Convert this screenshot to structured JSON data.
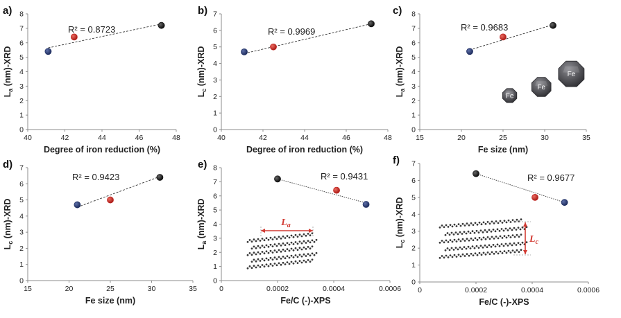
{
  "colors": {
    "blue": "#1f2f63",
    "red": "#c0201e",
    "black": "#111111",
    "accent": "#d23a32",
    "fe_body": "#4a4a4e"
  },
  "chart_data": [
    {
      "type": "scatter",
      "panel_label": "a)",
      "r2_label": "R² = 0.8723",
      "xlabel": "Degree of iron reduction  (%)",
      "ylabel_main": "L",
      "ylabel_sub": "a",
      "ylabel_rest": " (nm)-XRD",
      "xlim": [
        40,
        48
      ],
      "ylim": [
        0,
        8
      ],
      "xticks": [
        40,
        42,
        44,
        46,
        48
      ],
      "yticks": [
        0,
        1,
        2,
        3,
        4,
        5,
        6,
        7,
        8
      ],
      "xtick_labels": [
        "40",
        "42",
        "44",
        "46",
        "48"
      ],
      "ytick_labels": [
        "0",
        "1",
        "2",
        "3",
        "4",
        "5",
        "6",
        "7",
        "8"
      ],
      "x": [
        41.1,
        42.5,
        47.2
      ],
      "y": [
        5.4,
        6.4,
        7.2
      ],
      "point_colors": [
        "blue",
        "red",
        "black"
      ],
      "trendline": {
        "x": [
          41.1,
          47.2
        ],
        "y": [
          5.65,
          7.3
        ]
      }
    },
    {
      "type": "scatter",
      "panel_label": "b)",
      "r2_label": "R² = 0.9969",
      "xlabel": "Degree of iron reduction (%)",
      "ylabel_main": "L",
      "ylabel_sub": "c",
      "ylabel_rest": " (nm)-XRD",
      "xlim": [
        40,
        48
      ],
      "ylim": [
        0,
        7
      ],
      "xticks": [
        40,
        42,
        44,
        46,
        48
      ],
      "yticks": [
        0,
        1,
        2,
        3,
        4,
        5,
        6,
        7
      ],
      "xtick_labels": [
        "40",
        "42",
        "44",
        "46",
        "48"
      ],
      "ytick_labels": [
        "0",
        "1",
        "2",
        "3",
        "4",
        "5",
        "6",
        "7"
      ],
      "x": [
        41.1,
        42.5,
        47.2
      ],
      "y": [
        4.7,
        5.0,
        6.4
      ],
      "point_colors": [
        "blue",
        "red",
        "black"
      ],
      "trendline": {
        "x": [
          41.1,
          47.2
        ],
        "y": [
          4.6,
          6.4
        ]
      }
    },
    {
      "type": "scatter",
      "panel_label": "c)",
      "r2_label": "R² = 0.9683",
      "xlabel": "Fe  size (nm)",
      "ylabel_main": "L",
      "ylabel_sub": "a",
      "ylabel_rest": " (nm)-XRD",
      "xlim": [
        15,
        35
      ],
      "ylim": [
        0,
        8
      ],
      "xticks": [
        15,
        20,
        25,
        30,
        35
      ],
      "yticks": [
        0,
        1,
        2,
        3,
        4,
        5,
        6,
        7,
        8
      ],
      "xtick_labels": [
        "15",
        "20",
        "25",
        "30",
        "35"
      ],
      "ytick_labels": [
        "0",
        "1",
        "2",
        "3",
        "4",
        "5",
        "6",
        "7",
        "8"
      ],
      "x": [
        21,
        25,
        31
      ],
      "y": [
        5.4,
        6.4,
        7.2
      ],
      "point_colors": [
        "blue",
        "red",
        "black"
      ],
      "trendline": {
        "x": [
          21,
          31
        ],
        "y": [
          5.5,
          7.25
        ]
      },
      "annotations": {
        "fe_labels": [
          "Fe",
          "Fe",
          "Fe"
        ]
      }
    },
    {
      "type": "scatter",
      "panel_label": "d)",
      "r2_label": "R² = 0.9423",
      "xlabel": "Fe  size (nm)",
      "ylabel_main": "L",
      "ylabel_sub": "c",
      "ylabel_rest": " (nm)-XRD",
      "xlim": [
        15,
        35
      ],
      "ylim": [
        0,
        7
      ],
      "xticks": [
        15,
        20,
        25,
        30,
        35
      ],
      "yticks": [
        0,
        1,
        2,
        3,
        4,
        5,
        6,
        7
      ],
      "xtick_labels": [
        "15",
        "20",
        "25",
        "30",
        "35"
      ],
      "ytick_labels": [
        "0",
        "1",
        "2",
        "3",
        "4",
        "5",
        "6",
        "7"
      ],
      "x": [
        21,
        25,
        31
      ],
      "y": [
        4.7,
        5.0,
        6.4
      ],
      "point_colors": [
        "blue",
        "red",
        "black"
      ],
      "trendline": {
        "x": [
          21,
          31
        ],
        "y": [
          4.55,
          6.45
        ]
      }
    },
    {
      "type": "scatter",
      "panel_label": "e)",
      "r2_label": "R² = 0.9431",
      "xlabel": "Fe/C (-)-XPS",
      "ylabel_main": "L",
      "ylabel_sub": "a",
      "ylabel_rest": " (nm)-XRD",
      "xlim": [
        0,
        0.0006
      ],
      "ylim": [
        0,
        8
      ],
      "xticks": [
        0,
        0.0002,
        0.0004,
        0.0006
      ],
      "yticks": [
        0,
        1,
        2,
        3,
        4,
        5,
        6,
        7,
        8
      ],
      "xtick_labels": [
        "0",
        "0.0002",
        "0.0004",
        "0.0006"
      ],
      "ytick_labels": [
        "0",
        "1",
        "2",
        "3",
        "4",
        "5",
        "6",
        "7",
        "8"
      ],
      "x": [
        0.0002,
        0.00041,
        0.000515
      ],
      "y": [
        7.2,
        6.4,
        5.4
      ],
      "point_colors": [
        "black",
        "red",
        "blue"
      ],
      "trendline": {
        "x": [
          0.0002,
          0.000515
        ],
        "y": [
          7.2,
          5.5
        ]
      },
      "annotations": {
        "symbol_main": "L",
        "symbol_sub": "a"
      }
    },
    {
      "type": "scatter",
      "panel_label": "f)",
      "r2_label": "R² = 0.9677",
      "xlabel": "Fe/C (-)-XPS",
      "ylabel_main": "L",
      "ylabel_sub": "c",
      "ylabel_rest": " (nm)-XRD",
      "xlim": [
        0,
        0.0006
      ],
      "ylim": [
        0,
        7
      ],
      "xticks": [
        0,
        0.0002,
        0.0004,
        0.0006
      ],
      "yticks": [
        0,
        1,
        2,
        3,
        4,
        5,
        6,
        7
      ],
      "xtick_labels": [
        "0",
        "0.0002",
        "0.0004",
        "0.0006"
      ],
      "ytick_labels": [
        "0",
        "1",
        "2",
        "3",
        "4",
        "5",
        "6",
        "7"
      ],
      "x": [
        0.0002,
        0.00041,
        0.000515
      ],
      "y": [
        6.4,
        5.0,
        4.7
      ],
      "point_colors": [
        "black",
        "red",
        "blue"
      ],
      "trendline": {
        "x": [
          0.0002,
          0.000515
        ],
        "y": [
          6.4,
          4.7
        ]
      },
      "annotations": {
        "symbol_main": "L",
        "symbol_sub": "c"
      }
    }
  ]
}
